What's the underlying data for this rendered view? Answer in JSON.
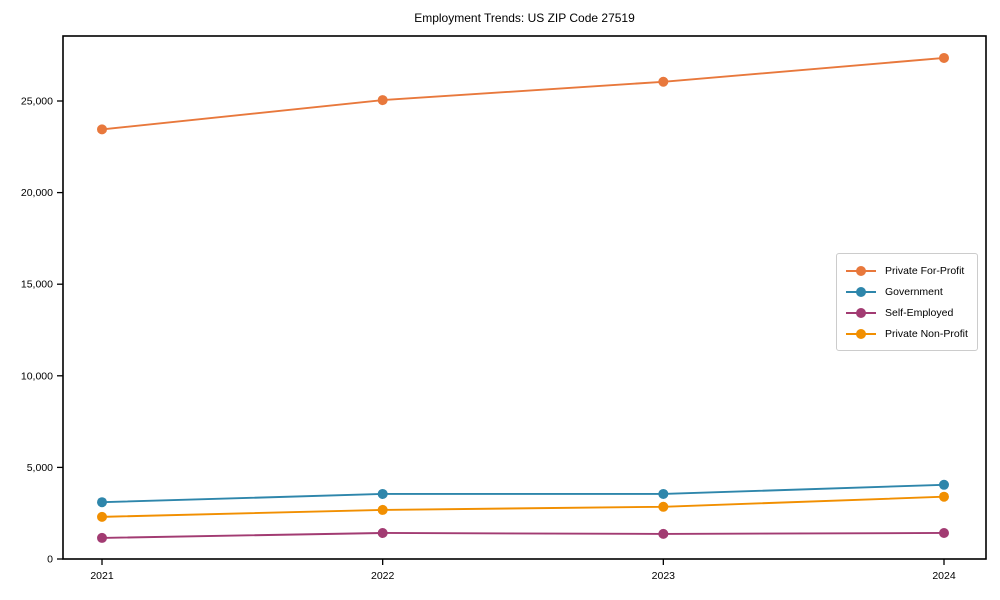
{
  "title": "Employment Trends: US ZIP Code 27519",
  "chart_data": {
    "type": "line",
    "title": "Employment Trends: US ZIP Code 27519",
    "xlabel": "",
    "ylabel": "",
    "categories": [
      "2021",
      "2022",
      "2023",
      "2024"
    ],
    "series": [
      {
        "name": "Private For-Profit",
        "color": "#E8783C",
        "values": [
          23450,
          25050,
          26050,
          27350
        ]
      },
      {
        "name": "Government",
        "color": "#2E86AB",
        "values": [
          3100,
          3550,
          3550,
          4050
        ]
      },
      {
        "name": "Self-Employed",
        "color": "#A23B72",
        "values": [
          1150,
          1420,
          1370,
          1420
        ]
      },
      {
        "name": "Private Non-Profit",
        "color": "#F18F01",
        "values": [
          2300,
          2680,
          2850,
          3400
        ]
      }
    ],
    "yticks": [
      0,
      5000,
      10000,
      15000,
      20000,
      25000
    ],
    "ytick_labels": [
      "0",
      "5,000",
      "10,000",
      "15,000",
      "20,000",
      "25,000"
    ],
    "ylim": [
      0,
      28500
    ],
    "grid": false,
    "legend_position": "center-right",
    "axis_color": "#000000",
    "background_color": "#ffffff"
  }
}
